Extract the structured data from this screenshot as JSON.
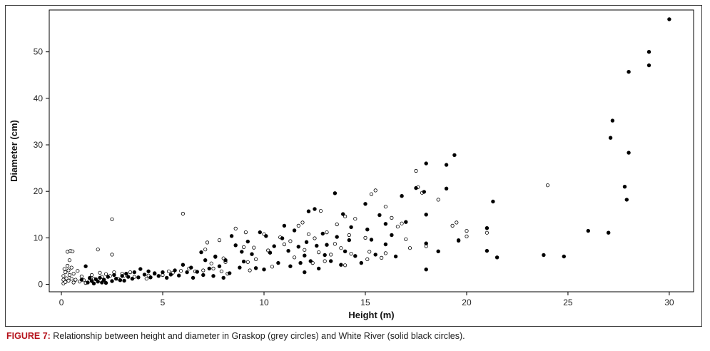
{
  "caption": {
    "label": "FIGURE 7:",
    "text": " Relationship between height and diameter in Graskop (grey circles) and White River (solid black circles)."
  },
  "chart_data": {
    "type": "scatter",
    "title": "",
    "xlabel": "Height (m)",
    "ylabel": "Diameter (cm)",
    "xlim": [
      -0.6,
      31.2
    ],
    "ylim": [
      -1.6,
      59
    ],
    "xticks": [
      0,
      5,
      10,
      15,
      20,
      25,
      30
    ],
    "yticks": [
      0,
      10,
      20,
      30,
      40,
      50
    ],
    "grid": false,
    "legend": "none",
    "series": [
      {
        "key": "graskop",
        "marker": "open-circle",
        "color": "#000000",
        "points": [
          [
            0.1,
            0.2
          ],
          [
            0.1,
            1.0
          ],
          [
            0.1,
            1.8
          ],
          [
            0.15,
            3.3
          ],
          [
            0.2,
            0.5
          ],
          [
            0.2,
            2.6
          ],
          [
            0.25,
            1.3
          ],
          [
            0.3,
            4.0
          ],
          [
            0.3,
            7.0
          ],
          [
            0.35,
            0.8
          ],
          [
            0.35,
            3.0
          ],
          [
            0.4,
            5.2
          ],
          [
            0.45,
            7.2
          ],
          [
            0.4,
            2.0
          ],
          [
            0.5,
            1.2
          ],
          [
            0.5,
            3.6
          ],
          [
            0.55,
            7.1
          ],
          [
            0.6,
            0.4
          ],
          [
            0.6,
            2.3
          ],
          [
            0.7,
            1.0
          ],
          [
            0.8,
            2.9
          ],
          [
            0.9,
            0.6
          ],
          [
            1.0,
            1.7
          ],
          [
            1.1,
            0.9
          ],
          [
            1.2,
            0.3
          ],
          [
            1.4,
            1.4
          ],
          [
            1.5,
            2.0
          ],
          [
            1.6,
            1.2
          ],
          [
            1.8,
            7.5
          ],
          [
            1.9,
            2.5
          ],
          [
            2.0,
            1.6
          ],
          [
            2.1,
            0.9
          ],
          [
            2.2,
            2.2
          ],
          [
            2.4,
            1.8
          ],
          [
            2.5,
            14.0
          ],
          [
            2.5,
            6.4
          ],
          [
            2.6,
            2.6
          ],
          [
            2.8,
            1.2
          ],
          [
            3.0,
            2.3
          ],
          [
            3.1,
            1.9
          ],
          [
            3.4,
            2.6
          ],
          [
            3.6,
            1.6
          ],
          [
            4.2,
            1.2
          ],
          [
            4.3,
            1.9
          ],
          [
            4.6,
            2.4
          ],
          [
            5.0,
            2.0
          ],
          [
            5.3,
            2.8
          ],
          [
            5.5,
            2.5
          ],
          [
            5.9,
            2.9
          ],
          [
            6.0,
            15.2
          ],
          [
            6.3,
            3.4
          ],
          [
            6.6,
            2.8
          ],
          [
            7.0,
            3.0
          ],
          [
            7.1,
            7.5
          ],
          [
            7.2,
            9.0
          ],
          [
            7.4,
            4.5
          ],
          [
            7.5,
            3.4
          ],
          [
            7.6,
            5.9
          ],
          [
            7.8,
            9.5
          ],
          [
            7.9,
            2.8
          ],
          [
            8.0,
            5.6
          ],
          [
            8.1,
            4.8
          ],
          [
            8.2,
            2.3
          ],
          [
            8.6,
            12.0
          ],
          [
            9.0,
            8.0
          ],
          [
            9.1,
            11.2
          ],
          [
            9.2,
            4.8
          ],
          [
            9.3,
            3.0
          ],
          [
            9.5,
            7.9
          ],
          [
            9.6,
            5.4
          ],
          [
            10.0,
            10.8
          ],
          [
            10.2,
            7.3
          ],
          [
            10.4,
            3.8
          ],
          [
            10.8,
            10.1
          ],
          [
            11.0,
            8.6
          ],
          [
            11.3,
            9.3
          ],
          [
            11.5,
            5.8
          ],
          [
            11.7,
            12.6
          ],
          [
            11.9,
            13.3
          ],
          [
            12.0,
            7.4
          ],
          [
            12.2,
            10.8
          ],
          [
            12.4,
            4.6
          ],
          [
            12.5,
            9.9
          ],
          [
            12.7,
            6.9
          ],
          [
            12.8,
            15.8
          ],
          [
            13.0,
            5.0
          ],
          [
            13.1,
            11.2
          ],
          [
            13.3,
            6.4
          ],
          [
            13.5,
            8.7
          ],
          [
            13.6,
            12.9
          ],
          [
            13.8,
            7.8
          ],
          [
            14.0,
            4.1
          ],
          [
            14.0,
            14.6
          ],
          [
            14.2,
            10.6
          ],
          [
            14.3,
            6.6
          ],
          [
            14.5,
            14.1
          ],
          [
            15.0,
            10.0
          ],
          [
            15.1,
            5.4
          ],
          [
            15.2,
            7.0
          ],
          [
            15.3,
            19.4
          ],
          [
            15.5,
            20.2
          ],
          [
            15.8,
            5.7
          ],
          [
            16.0,
            6.7
          ],
          [
            16.0,
            16.7
          ],
          [
            16.3,
            14.3
          ],
          [
            16.6,
            12.4
          ],
          [
            16.8,
            13.1
          ],
          [
            17.0,
            9.7
          ],
          [
            17.2,
            7.8
          ],
          [
            17.5,
            24.4
          ],
          [
            17.6,
            20.9
          ],
          [
            17.8,
            19.7
          ],
          [
            18.0,
            8.2
          ],
          [
            18.6,
            18.2
          ],
          [
            19.3,
            12.6
          ],
          [
            19.5,
            13.3
          ],
          [
            19.6,
            9.5
          ],
          [
            20.0,
            11.5
          ],
          [
            20.0,
            10.3
          ],
          [
            21.0,
            11.1
          ],
          [
            24.0,
            21.3
          ]
        ]
      },
      {
        "key": "white_river",
        "marker": "filled-circle",
        "color": "#000000",
        "points": [
          [
            1.0,
            1.0
          ],
          [
            1.2,
            3.9
          ],
          [
            1.3,
            0.4
          ],
          [
            1.4,
            1.3
          ],
          [
            1.5,
            0.7
          ],
          [
            1.6,
            0.2
          ],
          [
            1.7,
            1.1
          ],
          [
            1.8,
            0.6
          ],
          [
            1.9,
            1.4
          ],
          [
            2.0,
            0.4
          ],
          [
            2.1,
            1.0
          ],
          [
            2.2,
            0.3
          ],
          [
            2.3,
            1.6
          ],
          [
            2.5,
            0.7
          ],
          [
            2.6,
            2.0
          ],
          [
            2.7,
            1.2
          ],
          [
            2.9,
            0.9
          ],
          [
            3.0,
            1.8
          ],
          [
            3.1,
            0.8
          ],
          [
            3.2,
            2.3
          ],
          [
            3.3,
            1.6
          ],
          [
            3.5,
            1.2
          ],
          [
            3.6,
            2.6
          ],
          [
            3.8,
            1.5
          ],
          [
            3.9,
            3.3
          ],
          [
            4.1,
            2.1
          ],
          [
            4.3,
            2.8
          ],
          [
            4.4,
            1.5
          ],
          [
            4.6,
            2.3
          ],
          [
            4.8,
            1.8
          ],
          [
            5.0,
            2.6
          ],
          [
            5.2,
            1.4
          ],
          [
            5.4,
            2.1
          ],
          [
            5.6,
            3.0
          ],
          [
            5.8,
            1.9
          ],
          [
            6.0,
            4.2
          ],
          [
            6.2,
            2.6
          ],
          [
            6.4,
            3.6
          ],
          [
            6.5,
            1.4
          ],
          [
            6.7,
            2.7
          ],
          [
            6.9,
            6.9
          ],
          [
            7.0,
            2.0
          ],
          [
            7.1,
            5.2
          ],
          [
            7.3,
            3.4
          ],
          [
            7.5,
            1.8
          ],
          [
            7.6,
            6.0
          ],
          [
            7.8,
            3.9
          ],
          [
            8.0,
            1.4
          ],
          [
            8.1,
            5.2
          ],
          [
            8.3,
            2.4
          ],
          [
            8.4,
            10.4
          ],
          [
            8.6,
            8.4
          ],
          [
            8.8,
            3.6
          ],
          [
            8.9,
            7.0
          ],
          [
            9.0,
            4.9
          ],
          [
            9.2,
            9.2
          ],
          [
            9.4,
            6.5
          ],
          [
            9.6,
            3.5
          ],
          [
            9.8,
            11.2
          ],
          [
            10.0,
            3.2
          ],
          [
            10.1,
            10.4
          ],
          [
            10.3,
            6.8
          ],
          [
            10.5,
            8.2
          ],
          [
            10.7,
            4.6
          ],
          [
            10.9,
            9.9
          ],
          [
            11.0,
            12.6
          ],
          [
            11.2,
            7.2
          ],
          [
            11.3,
            3.9
          ],
          [
            11.5,
            11.6
          ],
          [
            11.7,
            8.1
          ],
          [
            11.8,
            4.6
          ],
          [
            12.0,
            6.2
          ],
          [
            12.0,
            2.6
          ],
          [
            12.1,
            9.1
          ],
          [
            12.2,
            15.7
          ],
          [
            12.3,
            5.0
          ],
          [
            12.5,
            16.2
          ],
          [
            12.6,
            8.3
          ],
          [
            12.7,
            3.4
          ],
          [
            12.9,
            10.9
          ],
          [
            13.0,
            6.3
          ],
          [
            13.1,
            8.5
          ],
          [
            13.3,
            5.0
          ],
          [
            13.5,
            19.6
          ],
          [
            13.6,
            10.2
          ],
          [
            13.8,
            4.2
          ],
          [
            13.9,
            15.1
          ],
          [
            14.0,
            7.1
          ],
          [
            14.2,
            9.5
          ],
          [
            14.3,
            12.3
          ],
          [
            14.5,
            6.1
          ],
          [
            14.8,
            4.6
          ],
          [
            15.0,
            17.3
          ],
          [
            15.1,
            11.8
          ],
          [
            15.3,
            9.6
          ],
          [
            15.5,
            6.4
          ],
          [
            15.7,
            14.9
          ],
          [
            16.0,
            13.0
          ],
          [
            16.0,
            8.6
          ],
          [
            16.3,
            10.6
          ],
          [
            16.5,
            6.0
          ],
          [
            16.8,
            19.0
          ],
          [
            17.0,
            13.4
          ],
          [
            17.5,
            20.7
          ],
          [
            17.9,
            19.9
          ],
          [
            18.0,
            26.0
          ],
          [
            18.0,
            15.0
          ],
          [
            18.0,
            3.2
          ],
          [
            18.0,
            8.8
          ],
          [
            18.6,
            7.1
          ],
          [
            19.0,
            25.7
          ],
          [
            19.0,
            20.6
          ],
          [
            19.4,
            27.8
          ],
          [
            19.6,
            9.4
          ],
          [
            21.0,
            7.2
          ],
          [
            21.0,
            12.1
          ],
          [
            21.3,
            17.8
          ],
          [
            21.5,
            5.8
          ],
          [
            23.8,
            6.3
          ],
          [
            24.8,
            6.0
          ],
          [
            26.0,
            11.5
          ],
          [
            27.0,
            11.1
          ],
          [
            27.1,
            31.5
          ],
          [
            27.2,
            35.2
          ],
          [
            27.8,
            21.0
          ],
          [
            27.9,
            18.2
          ],
          [
            28.0,
            45.7
          ],
          [
            28.0,
            28.3
          ],
          [
            29.0,
            47.1
          ],
          [
            29.0,
            50.0
          ],
          [
            30.0,
            57.0
          ]
        ]
      }
    ]
  }
}
